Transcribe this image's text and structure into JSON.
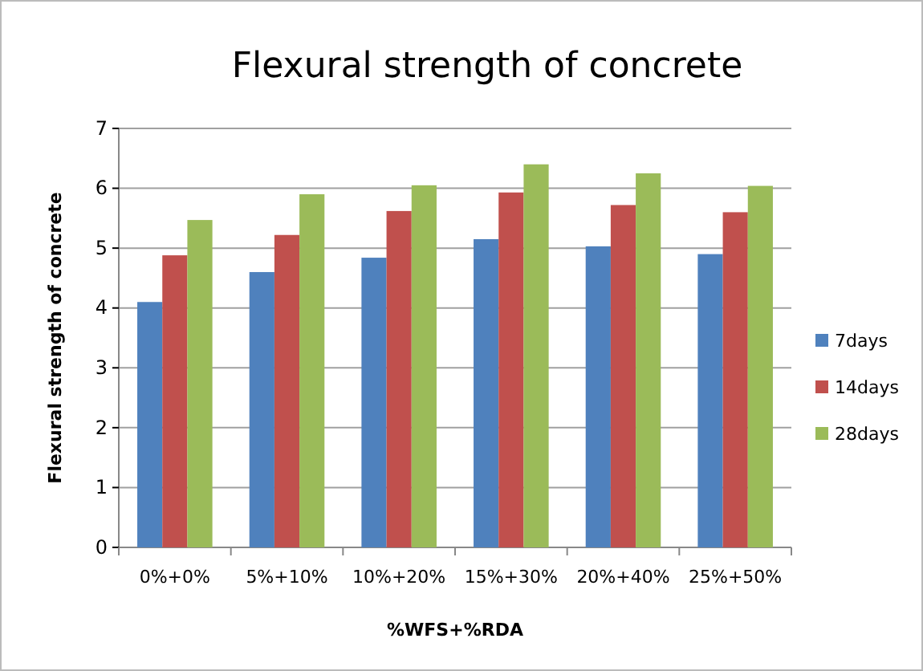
{
  "chart_data": {
    "type": "bar",
    "title": "Flexural strength of concrete",
    "xlabel": "%WFS+%RDA",
    "ylabel": "Flexural strength of concrete",
    "categories": [
      "0%+0%",
      "5%+10%",
      "10%+20%",
      "15%+30%",
      "20%+40%",
      "25%+50%"
    ],
    "series": [
      {
        "name": "7days",
        "color": "#4f81bd",
        "values": [
          4.1,
          4.6,
          4.84,
          5.15,
          5.03,
          4.9
        ]
      },
      {
        "name": "14days",
        "color": "#c0504d",
        "values": [
          4.88,
          5.22,
          5.62,
          5.93,
          5.72,
          5.6
        ]
      },
      {
        "name": "28days",
        "color": "#9bbb59",
        "values": [
          5.47,
          5.9,
          6.05,
          6.4,
          6.25,
          6.04
        ]
      }
    ],
    "ylim": [
      0,
      7
    ],
    "yticks": [
      0,
      1,
      2,
      3,
      4,
      5,
      6,
      7
    ],
    "grid": "y",
    "legend": "right"
  }
}
